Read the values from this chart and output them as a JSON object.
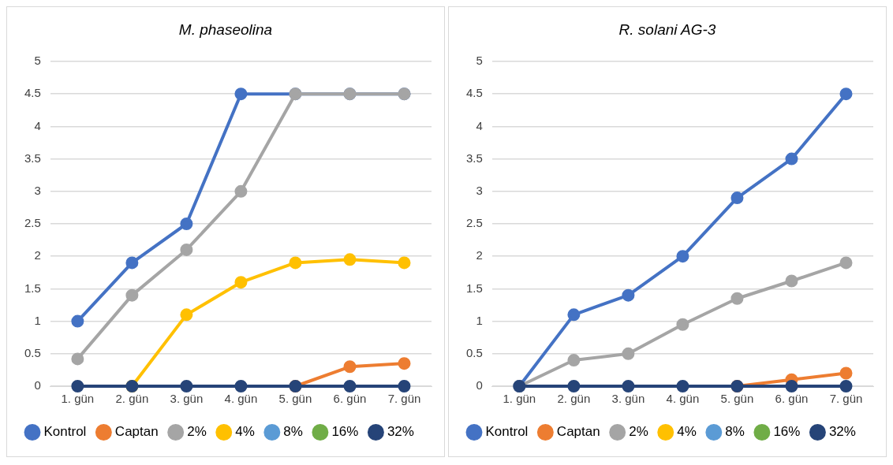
{
  "chart_data": [
    {
      "type": "line",
      "title": "M. phaseolina",
      "categories": [
        "1. gün",
        "2. gün",
        "3. gün",
        "4. gün",
        "5. gün",
        "6. gün",
        "7. gün"
      ],
      "ylim": [
        0,
        5
      ],
      "yticks": [
        0,
        0.5,
        1,
        1.5,
        2,
        2.5,
        3,
        3.5,
        4,
        4.5,
        5
      ],
      "grid": "y",
      "legend": "bottom",
      "marker": "circle",
      "series": [
        {
          "name": "Kontrol",
          "color": "#4472c4",
          "values": [
            1,
            1.9,
            2.5,
            4.5,
            4.5,
            4.5,
            4.5
          ]
        },
        {
          "name": "Captan",
          "color": "#ed7d31",
          "values": [
            null,
            null,
            null,
            null,
            0,
            0.3,
            0.35
          ]
        },
        {
          "name": "2%",
          "color": "#a5a5a5",
          "values": [
            0.42,
            1.4,
            2.1,
            3,
            4.5,
            4.5,
            4.5
          ]
        },
        {
          "name": "4%",
          "color": "#ffc000",
          "values": [
            null,
            0,
            1.1,
            1.6,
            1.9,
            1.95,
            1.9
          ]
        },
        {
          "name": "8%",
          "color": "#5b9bd5",
          "values": [
            null,
            null,
            null,
            null,
            null,
            null,
            null
          ]
        },
        {
          "name": "16%",
          "color": "#70ad47",
          "values": [
            null,
            null,
            null,
            null,
            null,
            null,
            null
          ]
        },
        {
          "name": "32%",
          "color": "#264478",
          "values": [
            0,
            0,
            0,
            0,
            0,
            0,
            0
          ]
        }
      ]
    },
    {
      "type": "line",
      "title": "R. solani AG-3",
      "categories": [
        "1. gün",
        "2. gün",
        "3. gün",
        "4. gün",
        "5. gün",
        "6. gün",
        "7. gün"
      ],
      "ylim": [
        0,
        5
      ],
      "yticks": [
        0,
        0.5,
        1,
        1.5,
        2,
        2.5,
        3,
        3.5,
        4,
        4.5,
        5
      ],
      "grid": "y",
      "legend": "bottom",
      "marker": "circle",
      "series": [
        {
          "name": "Kontrol",
          "color": "#4472c4",
          "values": [
            0,
            1.1,
            1.4,
            2,
            2.9,
            3.5,
            4.5
          ]
        },
        {
          "name": "Captan",
          "color": "#ed7d31",
          "values": [
            null,
            null,
            null,
            null,
            0,
            0.1,
            0.2
          ]
        },
        {
          "name": "2%",
          "color": "#a5a5a5",
          "values": [
            0,
            0.4,
            0.5,
            0.95,
            1.35,
            1.62,
            1.9
          ]
        },
        {
          "name": "4%",
          "color": "#ffc000",
          "values": [
            null,
            null,
            null,
            null,
            null,
            null,
            null
          ]
        },
        {
          "name": "8%",
          "color": "#5b9bd5",
          "values": [
            null,
            null,
            null,
            null,
            null,
            null,
            null
          ]
        },
        {
          "name": "16%",
          "color": "#70ad47",
          "values": [
            null,
            null,
            null,
            null,
            null,
            null,
            null
          ]
        },
        {
          "name": "32%",
          "color": "#264478",
          "values": [
            0,
            0,
            0,
            0,
            0,
            0,
            0
          ]
        }
      ]
    }
  ]
}
